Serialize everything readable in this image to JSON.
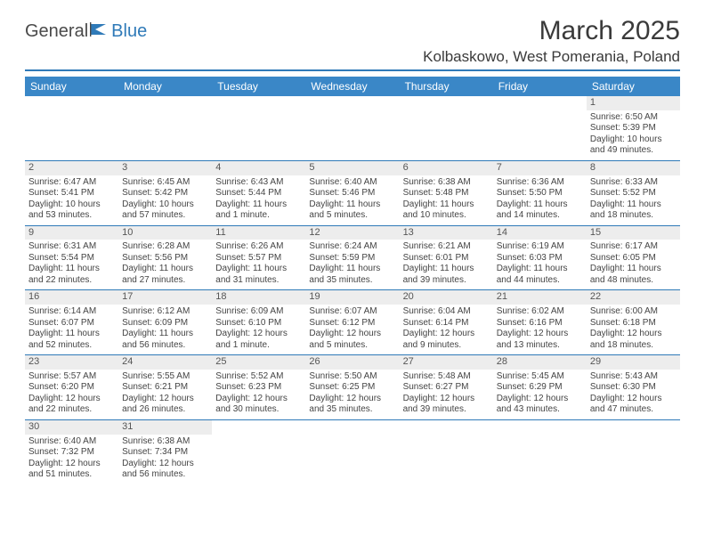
{
  "logo": {
    "word1": "General",
    "word2": "Blue"
  },
  "title": "March 2025",
  "location": "Kolbaskowo, West Pomerania, Poland",
  "colors": {
    "header_bar": "#3a87c7",
    "rule": "#2f7ab8",
    "daynum_bg": "#ededed",
    "text": "#444444",
    "logo_blue": "#2f7ab8"
  },
  "fonts": {
    "title_pt": 30,
    "location_pt": 17,
    "th_pt": 12,
    "cell_pt": 10,
    "daynum_pt": 11
  },
  "day_headers": [
    "Sunday",
    "Monday",
    "Tuesday",
    "Wednesday",
    "Thursday",
    "Friday",
    "Saturday"
  ],
  "weeks": [
    [
      null,
      null,
      null,
      null,
      null,
      null,
      {
        "n": "1",
        "sr": "Sunrise: 6:50 AM",
        "ss": "Sunset: 5:39 PM",
        "d1": "Daylight: 10 hours",
        "d2": "and 49 minutes."
      }
    ],
    [
      {
        "n": "2",
        "sr": "Sunrise: 6:47 AM",
        "ss": "Sunset: 5:41 PM",
        "d1": "Daylight: 10 hours",
        "d2": "and 53 minutes."
      },
      {
        "n": "3",
        "sr": "Sunrise: 6:45 AM",
        "ss": "Sunset: 5:42 PM",
        "d1": "Daylight: 10 hours",
        "d2": "and 57 minutes."
      },
      {
        "n": "4",
        "sr": "Sunrise: 6:43 AM",
        "ss": "Sunset: 5:44 PM",
        "d1": "Daylight: 11 hours",
        "d2": "and 1 minute."
      },
      {
        "n": "5",
        "sr": "Sunrise: 6:40 AM",
        "ss": "Sunset: 5:46 PM",
        "d1": "Daylight: 11 hours",
        "d2": "and 5 minutes."
      },
      {
        "n": "6",
        "sr": "Sunrise: 6:38 AM",
        "ss": "Sunset: 5:48 PM",
        "d1": "Daylight: 11 hours",
        "d2": "and 10 minutes."
      },
      {
        "n": "7",
        "sr": "Sunrise: 6:36 AM",
        "ss": "Sunset: 5:50 PM",
        "d1": "Daylight: 11 hours",
        "d2": "and 14 minutes."
      },
      {
        "n": "8",
        "sr": "Sunrise: 6:33 AM",
        "ss": "Sunset: 5:52 PM",
        "d1": "Daylight: 11 hours",
        "d2": "and 18 minutes."
      }
    ],
    [
      {
        "n": "9",
        "sr": "Sunrise: 6:31 AM",
        "ss": "Sunset: 5:54 PM",
        "d1": "Daylight: 11 hours",
        "d2": "and 22 minutes."
      },
      {
        "n": "10",
        "sr": "Sunrise: 6:28 AM",
        "ss": "Sunset: 5:56 PM",
        "d1": "Daylight: 11 hours",
        "d2": "and 27 minutes."
      },
      {
        "n": "11",
        "sr": "Sunrise: 6:26 AM",
        "ss": "Sunset: 5:57 PM",
        "d1": "Daylight: 11 hours",
        "d2": "and 31 minutes."
      },
      {
        "n": "12",
        "sr": "Sunrise: 6:24 AM",
        "ss": "Sunset: 5:59 PM",
        "d1": "Daylight: 11 hours",
        "d2": "and 35 minutes."
      },
      {
        "n": "13",
        "sr": "Sunrise: 6:21 AM",
        "ss": "Sunset: 6:01 PM",
        "d1": "Daylight: 11 hours",
        "d2": "and 39 minutes."
      },
      {
        "n": "14",
        "sr": "Sunrise: 6:19 AM",
        "ss": "Sunset: 6:03 PM",
        "d1": "Daylight: 11 hours",
        "d2": "and 44 minutes."
      },
      {
        "n": "15",
        "sr": "Sunrise: 6:17 AM",
        "ss": "Sunset: 6:05 PM",
        "d1": "Daylight: 11 hours",
        "d2": "and 48 minutes."
      }
    ],
    [
      {
        "n": "16",
        "sr": "Sunrise: 6:14 AM",
        "ss": "Sunset: 6:07 PM",
        "d1": "Daylight: 11 hours",
        "d2": "and 52 minutes."
      },
      {
        "n": "17",
        "sr": "Sunrise: 6:12 AM",
        "ss": "Sunset: 6:09 PM",
        "d1": "Daylight: 11 hours",
        "d2": "and 56 minutes."
      },
      {
        "n": "18",
        "sr": "Sunrise: 6:09 AM",
        "ss": "Sunset: 6:10 PM",
        "d1": "Daylight: 12 hours",
        "d2": "and 1 minute."
      },
      {
        "n": "19",
        "sr": "Sunrise: 6:07 AM",
        "ss": "Sunset: 6:12 PM",
        "d1": "Daylight: 12 hours",
        "d2": "and 5 minutes."
      },
      {
        "n": "20",
        "sr": "Sunrise: 6:04 AM",
        "ss": "Sunset: 6:14 PM",
        "d1": "Daylight: 12 hours",
        "d2": "and 9 minutes."
      },
      {
        "n": "21",
        "sr": "Sunrise: 6:02 AM",
        "ss": "Sunset: 6:16 PM",
        "d1": "Daylight: 12 hours",
        "d2": "and 13 minutes."
      },
      {
        "n": "22",
        "sr": "Sunrise: 6:00 AM",
        "ss": "Sunset: 6:18 PM",
        "d1": "Daylight: 12 hours",
        "d2": "and 18 minutes."
      }
    ],
    [
      {
        "n": "23",
        "sr": "Sunrise: 5:57 AM",
        "ss": "Sunset: 6:20 PM",
        "d1": "Daylight: 12 hours",
        "d2": "and 22 minutes."
      },
      {
        "n": "24",
        "sr": "Sunrise: 5:55 AM",
        "ss": "Sunset: 6:21 PM",
        "d1": "Daylight: 12 hours",
        "d2": "and 26 minutes."
      },
      {
        "n": "25",
        "sr": "Sunrise: 5:52 AM",
        "ss": "Sunset: 6:23 PM",
        "d1": "Daylight: 12 hours",
        "d2": "and 30 minutes."
      },
      {
        "n": "26",
        "sr": "Sunrise: 5:50 AM",
        "ss": "Sunset: 6:25 PM",
        "d1": "Daylight: 12 hours",
        "d2": "and 35 minutes."
      },
      {
        "n": "27",
        "sr": "Sunrise: 5:48 AM",
        "ss": "Sunset: 6:27 PM",
        "d1": "Daylight: 12 hours",
        "d2": "and 39 minutes."
      },
      {
        "n": "28",
        "sr": "Sunrise: 5:45 AM",
        "ss": "Sunset: 6:29 PM",
        "d1": "Daylight: 12 hours",
        "d2": "and 43 minutes."
      },
      {
        "n": "29",
        "sr": "Sunrise: 5:43 AM",
        "ss": "Sunset: 6:30 PM",
        "d1": "Daylight: 12 hours",
        "d2": "and 47 minutes."
      }
    ],
    [
      {
        "n": "30",
        "sr": "Sunrise: 6:40 AM",
        "ss": "Sunset: 7:32 PM",
        "d1": "Daylight: 12 hours",
        "d2": "and 51 minutes."
      },
      {
        "n": "31",
        "sr": "Sunrise: 6:38 AM",
        "ss": "Sunset: 7:34 PM",
        "d1": "Daylight: 12 hours",
        "d2": "and 56 minutes."
      },
      null,
      null,
      null,
      null,
      null
    ]
  ]
}
